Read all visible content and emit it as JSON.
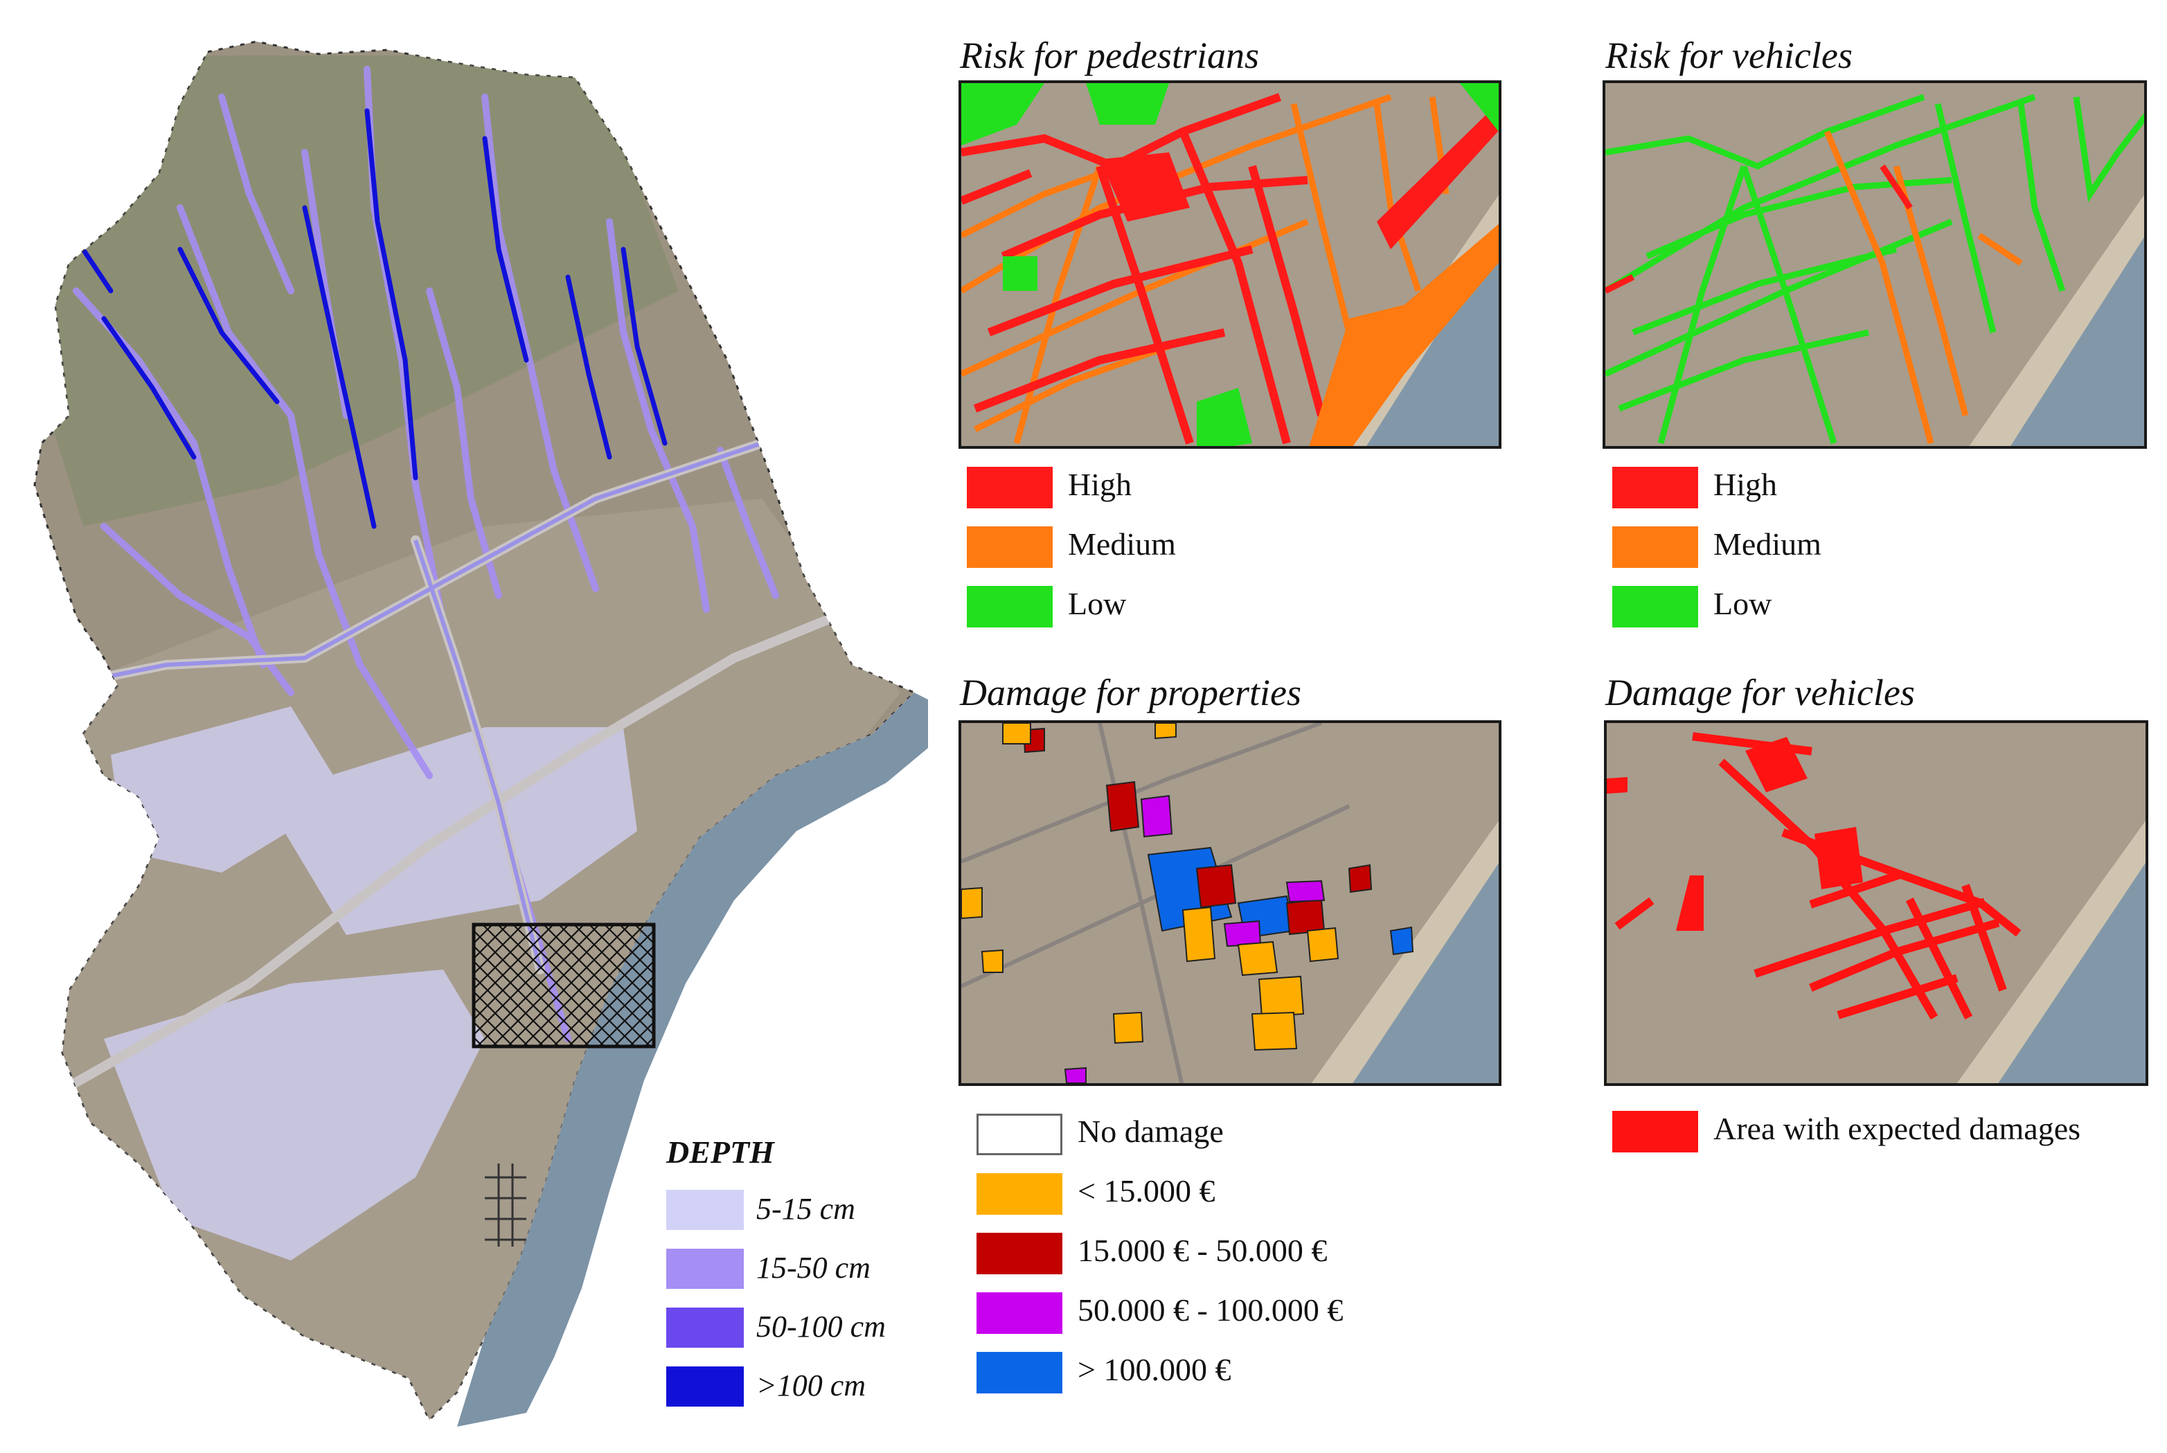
{
  "colors": {
    "high": "#ff1a1a",
    "medium": "#ff7a10",
    "low": "#22e01e",
    "no_damage": "#ffffff",
    "lt_15000": "#ffae00",
    "d_15000_50000": "#c20000",
    "d_50000_100000": "#c800f0",
    "gt_100000": "#0a66e6",
    "expected": "#ff1212",
    "depth_5_15": "#d2d2f8",
    "depth_15_50": "#a58ef4",
    "depth_50_100": "#6b48ee",
    "depth_gt_100": "#1010d8",
    "sea": "#7d93a6",
    "land": "#9c9282"
  },
  "main_map": {
    "depth_legend": {
      "title": "DEPTH",
      "items": [
        {
          "label": "5-15 cm",
          "color": "#d2d2f8"
        },
        {
          "label": "15-50 cm",
          "color": "#a58ef4"
        },
        {
          "label": "50-100 cm",
          "color": "#6b48ee"
        },
        {
          "label": ">100 cm",
          "color": "#1010d8"
        }
      ]
    }
  },
  "panels": {
    "risk_pedestrians": {
      "title": "Risk for pedestrians",
      "legend": [
        {
          "label": "High",
          "color": "#ff1a1a"
        },
        {
          "label": "Medium",
          "color": "#ff7a10"
        },
        {
          "label": "Low",
          "color": "#22e01e"
        }
      ]
    },
    "risk_vehicles": {
      "title": "Risk for vehicles",
      "legend": [
        {
          "label": "High",
          "color": "#ff1a1a"
        },
        {
          "label": "Medium",
          "color": "#ff7a10"
        },
        {
          "label": "Low",
          "color": "#22e01e"
        }
      ]
    },
    "damage_properties": {
      "title": "Damage for properties",
      "legend": [
        {
          "label": "No damage",
          "color": "#ffffff"
        },
        {
          "label": "< 15.000 €",
          "color": "#ffae00"
        },
        {
          "label": "15.000 € - 50.000 €",
          "color": "#c20000"
        },
        {
          "label": "50.000 € - 100.000 €",
          "color": "#c800f0"
        },
        {
          "label": "> 100.000 €",
          "color": "#0a66e6"
        }
      ]
    },
    "damage_vehicles": {
      "title": "Damage for vehicles",
      "legend": [
        {
          "label": "Area with expected damages",
          "color": "#ff1212"
        }
      ]
    }
  }
}
